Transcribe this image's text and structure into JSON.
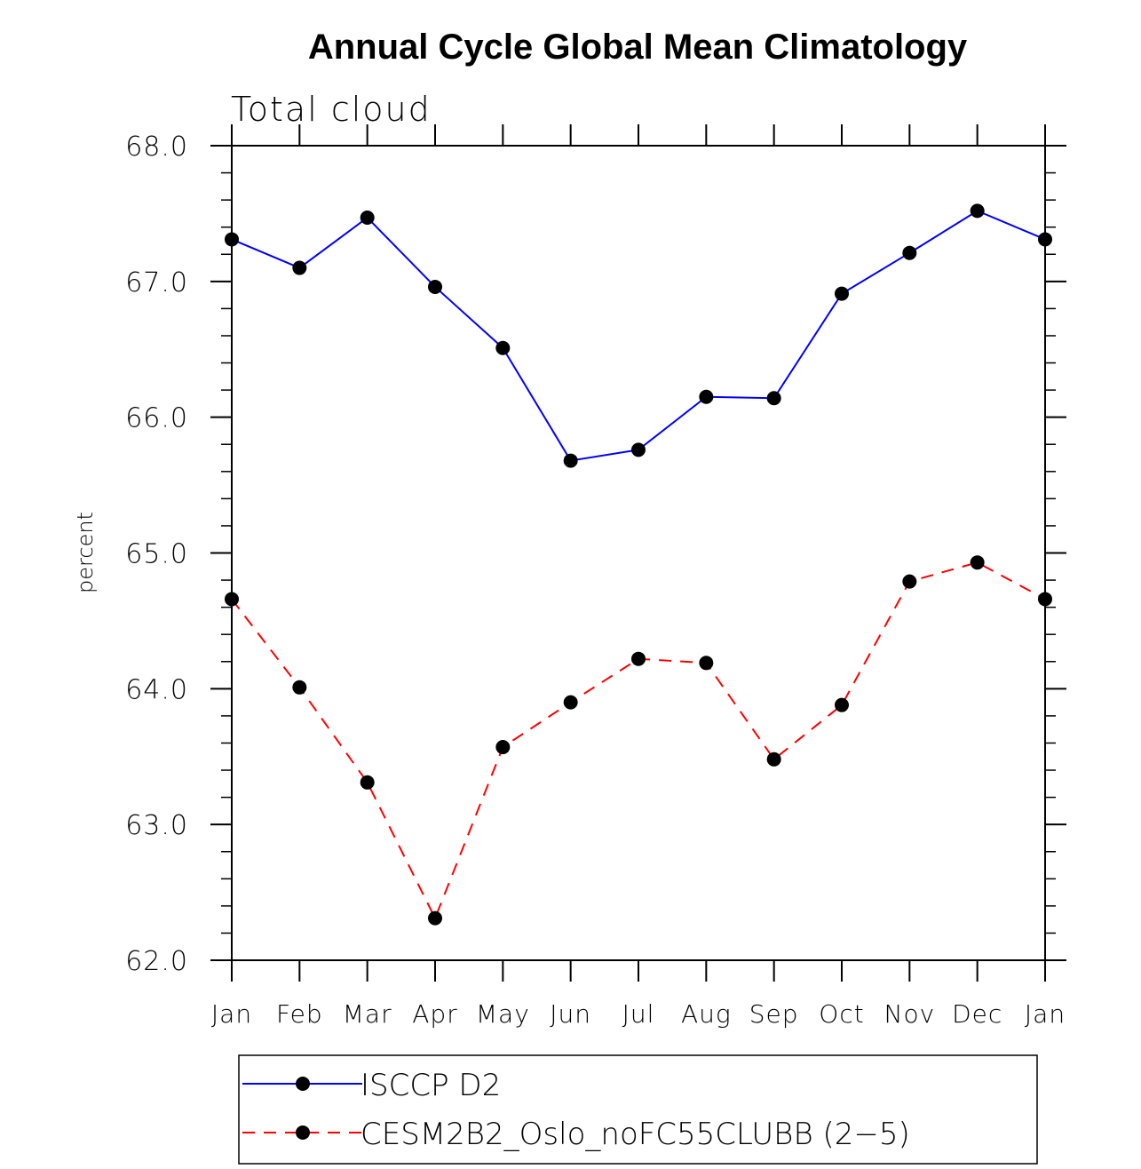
{
  "chart_data": {
    "type": "line",
    "title": "Annual Cycle Global Mean Climatology",
    "subtitle": "Total cloud",
    "xlabel": "",
    "ylabel": "percent",
    "categories": [
      "Jan",
      "Feb",
      "Mar",
      "Apr",
      "May",
      "Jun",
      "Jul",
      "Aug",
      "Sep",
      "Oct",
      "Nov",
      "Dec",
      "Jan"
    ],
    "ylim": [
      62.0,
      68.0
    ],
    "yticks": [
      "62.0",
      "63.0",
      "64.0",
      "65.0",
      "66.0",
      "67.0",
      "68.0"
    ],
    "y_minor_step": 0.2,
    "grid": false,
    "legend_position": "bottom",
    "series": [
      {
        "name": "ISCCP D2",
        "color": "#0000ff",
        "dash": "solid",
        "marker": "filled-circle",
        "values": [
          67.31,
          67.1,
          67.47,
          66.96,
          66.51,
          65.68,
          65.76,
          66.15,
          66.14,
          66.91,
          67.21,
          67.52,
          67.31
        ]
      },
      {
        "name": "CESM2B2_Oslo_noFC55CLUBB (2−5)",
        "color": "#ff0000",
        "dash": "dashed",
        "marker": "filled-circle",
        "values": [
          64.66,
          64.01,
          63.31,
          62.31,
          63.57,
          63.9,
          64.22,
          64.19,
          63.48,
          63.88,
          64.79,
          64.93,
          64.66
        ]
      }
    ]
  }
}
